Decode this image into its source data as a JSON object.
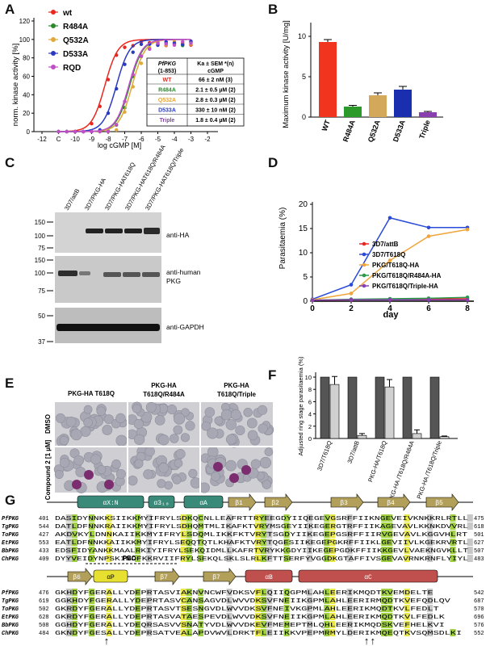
{
  "panels": {
    "A": {
      "letter": "A"
    },
    "B": {
      "letter": "B"
    },
    "C": {
      "letter": "C"
    },
    "D": {
      "letter": "D"
    },
    "E": {
      "letter": "E"
    },
    "F": {
      "letter": "F"
    },
    "G": {
      "letter": "G"
    }
  },
  "panelA": {
    "ylabel": "norm. kinase activity [%]",
    "xlabel": "log cGMP [M]",
    "legend": [
      "wt",
      "R484A",
      "Q532A",
      "D533A",
      "RQD"
    ],
    "legend_colors": [
      "#e8271f",
      "#2b8a2b",
      "#e0a73a",
      "#2a3bbf",
      "#c04fc8"
    ],
    "yticks": [
      "0",
      "20",
      "40",
      "60",
      "80",
      "100",
      "120"
    ],
    "xticks": [
      "-12",
      "C",
      "-10",
      "-9",
      "-8",
      "-7",
      "-6",
      "-5",
      "-4",
      "-3",
      "-2"
    ],
    "table": {
      "header1": "PfPKG",
      "header2": "Ka ± SEM *(n)",
      "sub1": "(1-853)",
      "sub2": "cGMP",
      "rows": [
        {
          "name": "WT",
          "value": "66 ± 2 nM (3)",
          "color": "#e8271f"
        },
        {
          "name": "R484A",
          "value": "2.1 ± 0.5 µM (2)",
          "color": "#2b8a2b"
        },
        {
          "name": "Q532A",
          "value": "2.8 ± 0.3 µM (2)",
          "color": "#e0a73a"
        },
        {
          "name": "D533A",
          "value": "330 ± 10 nM (2)",
          "color": "#2a3bbf"
        },
        {
          "name": "Triple",
          "value": "1.8 ± 0.4 µM (2)",
          "color": "#8a3fb0"
        }
      ]
    }
  },
  "panelB": {
    "ylabel": "Maximum kinase activity [U/mg]",
    "yticks": [
      "0",
      "5",
      "10"
    ]
  },
  "panelC": {
    "lanes": [
      "3D7/attB",
      "3D7/PKG-HA",
      "3D7/PKG-HAT618Q",
      "3D7/PKG-HAT618Q/R484A",
      "3D7/PKG-HAT618Q/Triple"
    ],
    "blots": [
      "anti-HA",
      "anti-human PKG",
      "anti-GAPDH"
    ],
    "markers": [
      "150",
      "100",
      "75",
      "150",
      "100",
      "75",
      "50",
      "37"
    ]
  },
  "panelD": {
    "ylabel": "Parasitaemia (%)",
    "xlabel": "day",
    "yticks": [
      "0",
      "5",
      "10",
      "15",
      "20"
    ],
    "xticks": [
      "0",
      "2",
      "4",
      "6",
      "8"
    ],
    "legend": [
      "3D7/attB",
      "3D7/T618Q",
      "PKG/T618Q-HA",
      "PKG/T618Q/R484A-HA",
      "PKG/T618Q/Triple-HA"
    ]
  },
  "panelE": {
    "cols": [
      "PKG-HA T618Q",
      "PKG-HA T618Q/R484A",
      "PKG-HA T618Q/Triple"
    ],
    "rows": [
      "DMSO",
      "Compound 2 [1 µM]"
    ]
  },
  "panelF": {
    "ylabel": "Adjusted ring stage parasitaemia (%)",
    "yticks": [
      "0",
      "2",
      "4",
      "6",
      "8",
      "10"
    ],
    "categories": [
      "3D7/T618Q",
      "3D7/attB",
      "PKG-HA/T618Q",
      "PKG-HA /T618Q/R484A",
      "PKG-HA /T618Q/Triple"
    ]
  },
  "panelG": {
    "top_labels": [
      "αX:N",
      "α3₁₀",
      "αA",
      "β1",
      "β2",
      "β3",
      "β4",
      "β5"
    ],
    "bottom_labels": [
      "β6",
      "αP",
      "β7",
      "β7",
      "αB",
      "αC"
    ],
    "pbc": "PBC",
    "species": [
      "PfPKG",
      "TgPKG",
      "ToPKG",
      "EtPKG",
      "BbPKG",
      "ChPKG"
    ],
    "top_start": [
      "401",
      "544",
      "427",
      "553",
      "433",
      "409"
    ],
    "top_end": [
      "475",
      "618",
      "501",
      "627",
      "507",
      "483"
    ],
    "top_seq": [
      "DASIDYNNKKSIIKKMYIFRYLSDKQCNLLEAFRTTRYEEGDYIIQEGEVGSRFFIIKNGEVEIVKNKKRLRTLL",
      "DATLDFNNKRAIIKKMYIFRYLSDHQMTMLIKAFKTVRYMSGEYIIKEGERGTRFFIIKAGEVAVLKKNKDVVRL",
      "AKDVKYLDNNKAIIKKMYIFRYLSDQMLIKKFKTVRYTSGDYIIKEGEPGSRFFIIRVGEVAVLKGGVHLRT",
      "EATLDFNNKKAIIKKMYIFRYLSEQQTQTLKHAFKTVRYTQGESIIKEGEPGKRFFIIKLGEVIIVLKGEKRVRTL",
      "EDSFIDYANKKMAALRKIYIFRYLSEKQIDMLLKAFRTVRYKKGDYIIKEGEPGDKFFIIKKGEVLVAEKNGVKLLT",
      "DYYVEIDYNPSKINDFKKRVIIFRYLSEKQLSKLSLRLKFTTSERFYVGGDKGTAFFIVSGEVAVRNKRNFLYIYL"
    ],
    "bottom_start": [
      "476",
      "619",
      "502",
      "628",
      "508",
      "484"
    ],
    "bottom_end": [
      "542",
      "687",
      "570",
      "696",
      "576",
      "552"
    ],
    "bottom_seq": [
      "GKHDYFGERALLYDEPRTASVIAKNVNCWFVDKSVFLQIIQGPMLAHLEERIKMQDTKVEMDELTE",
      "GGKHDYFGERALLYDEPRTASVCANSAGVDLWVVDKSVFNEIIKGPMLAHLEERIRMQDTKVEFQDLQV",
      "GKRDYFGERALLYDEPRTASVTSESNGVDLWVVDKSVFNEIVKGPMLAHLEERIKMQDTKVLFEDLT",
      "GKRDYFGERALLYDEPRTASVATAESPEVDLWVVDKSVFNEIIKGPMLAHLEERIKMQDTKVLFEDLK",
      "GGHDYFGERALLYDEQRSASVVSNATYVDLWVVDKEVFMEMEPTMLQHLEERIKMQDSKVEFHELKVI",
      "GKNDYFGESALLYDEPRSATVEALAPDVWVLDRKTFLEIIKKVPEPMRMYLDERIKMQEQTKVSQMSDLKI"
    ],
    "arrows": [
      "↑",
      "↑↑"
    ]
  }
}
